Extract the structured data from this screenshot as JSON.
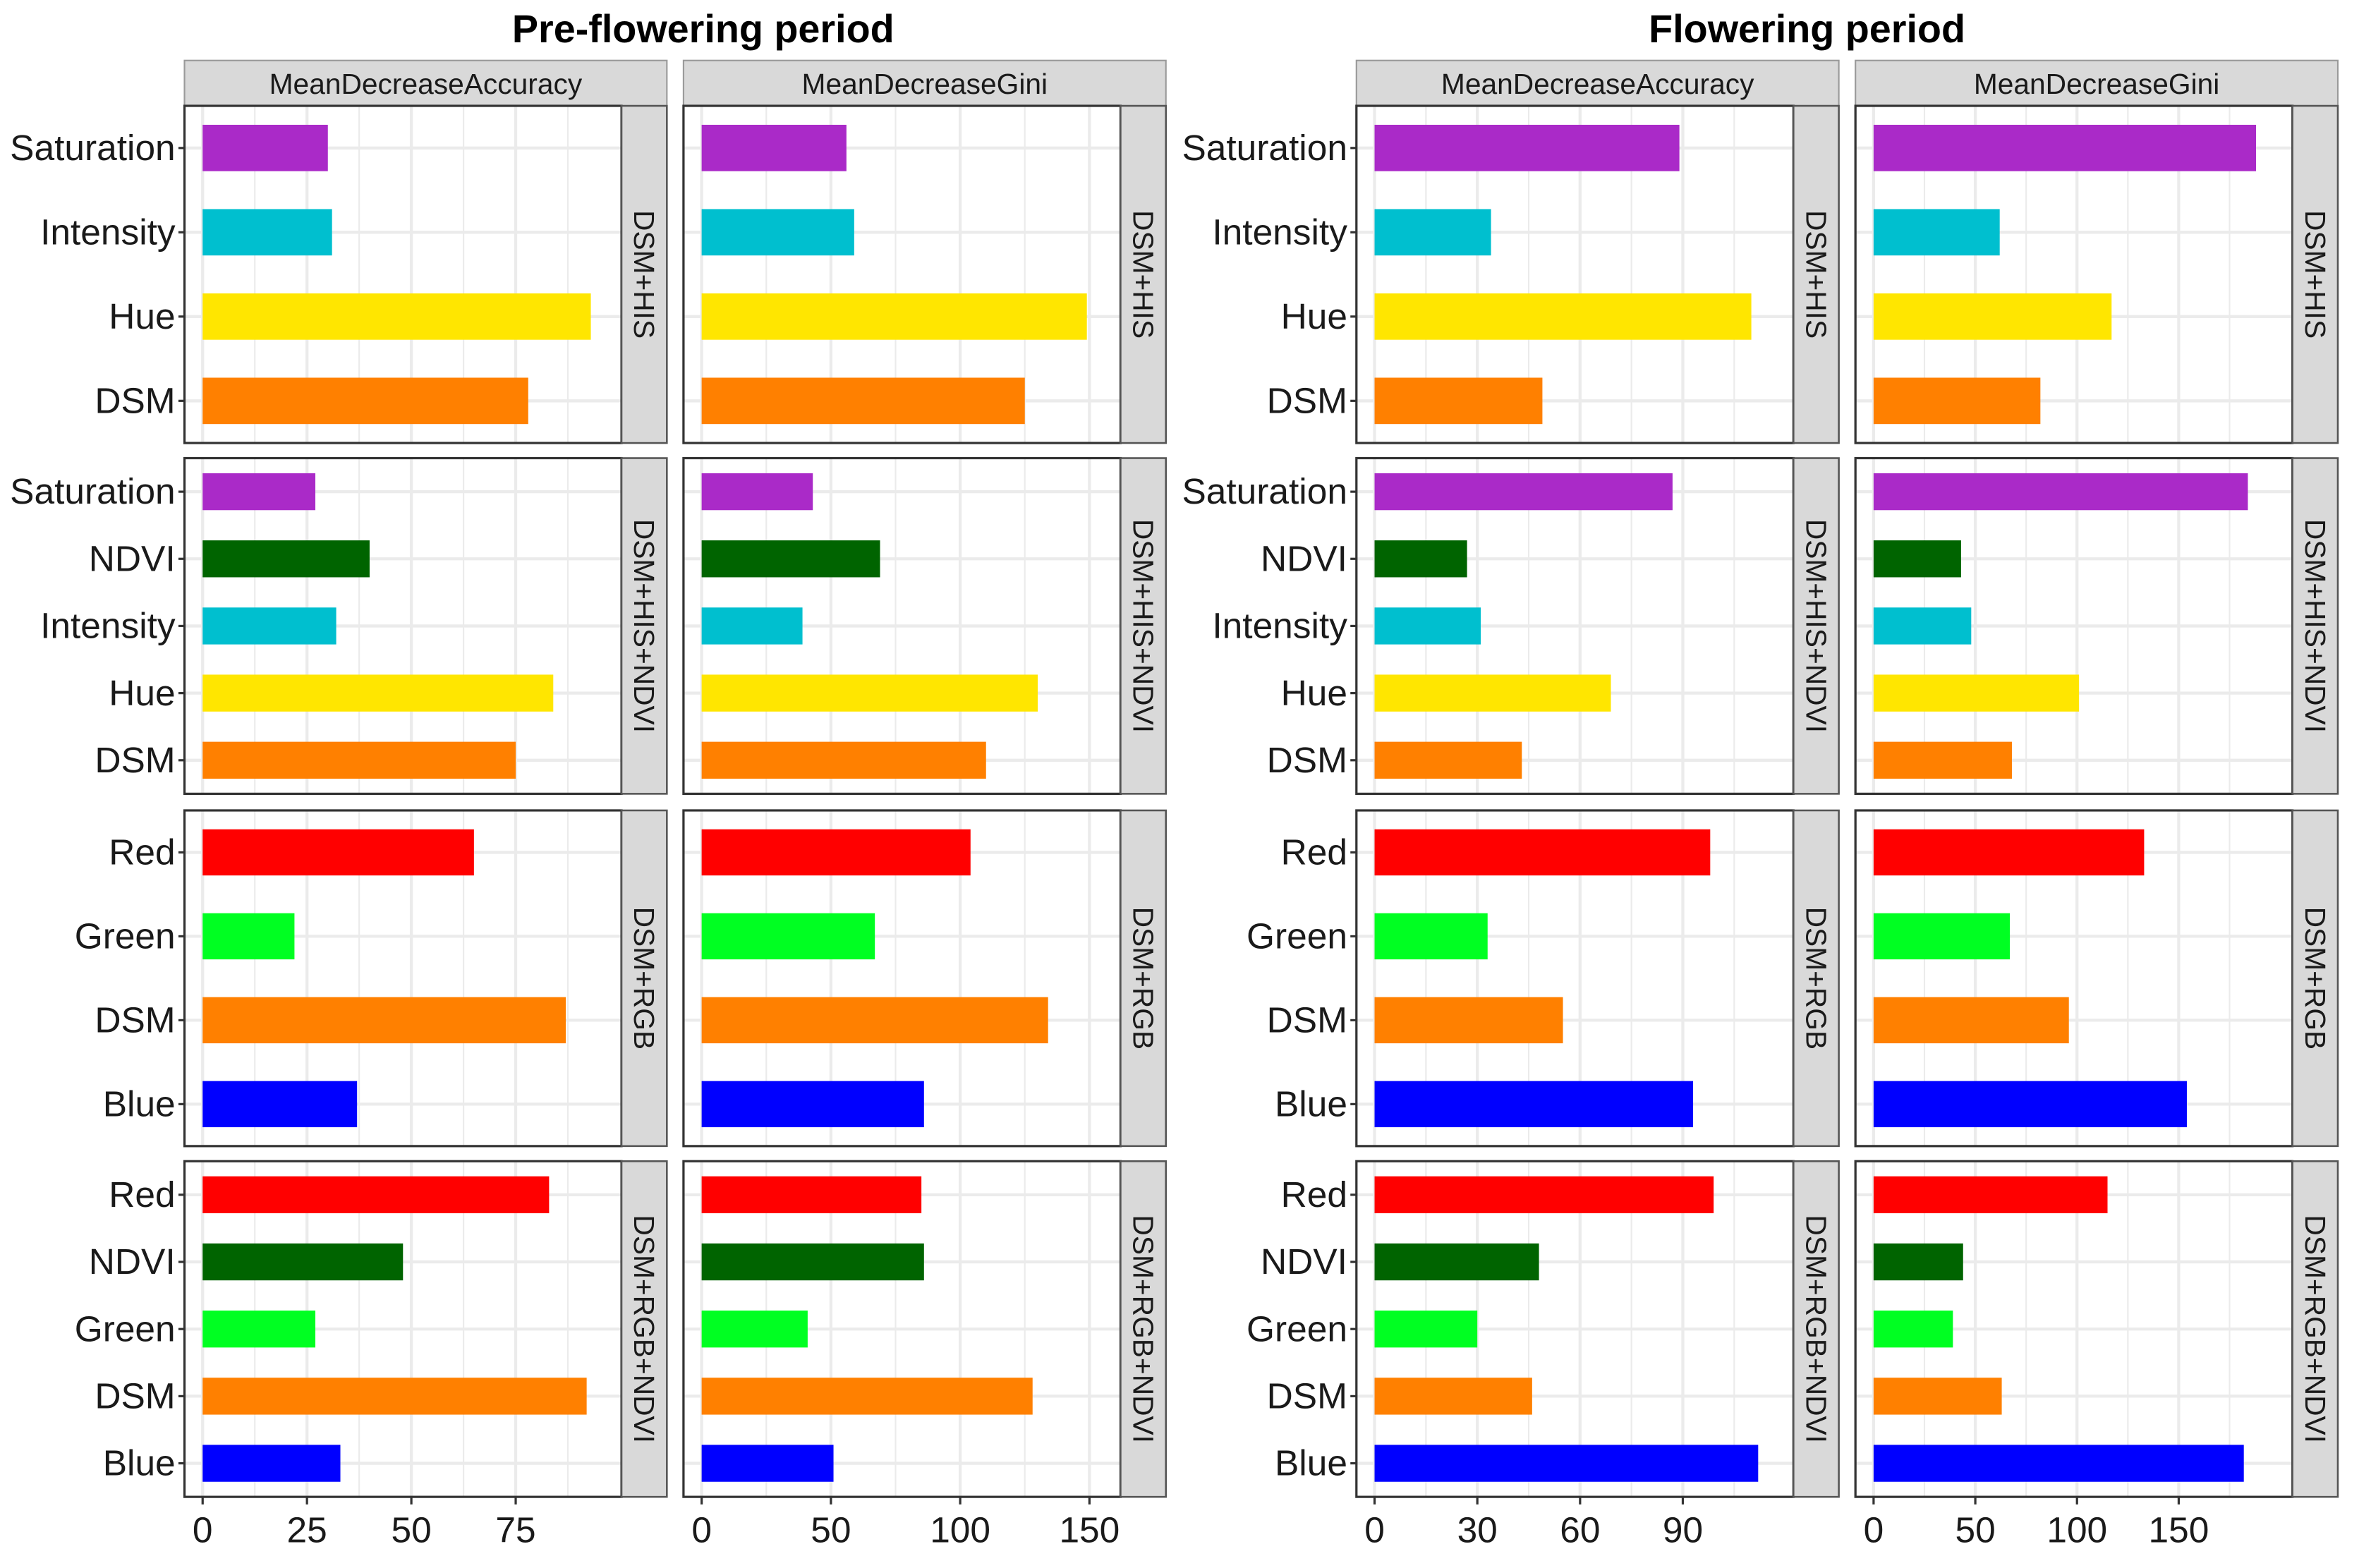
{
  "titles": [
    "Pre-flowering period",
    "Flowering period"
  ],
  "colors": {
    "Saturation": "#aa2ac8",
    "Intensity": "#00bfcf",
    "Hue": "#ffe600",
    "DSM": "#ff8000",
    "NDVI": "#006400",
    "Red": "#ff0000",
    "Green": "#00ff22",
    "Blue": "#0000ff",
    "strip_bg": "#d9d9d9",
    "grid": "#ebebeb"
  },
  "chart_data": [
    {
      "type": "bar",
      "orientation": "horizontal",
      "title": "Pre-flowering period",
      "facet_rows": [
        "DSM+HIS",
        "DSM+HIS+NDVI",
        "DSM+RGB",
        "DSM+RGB+NDVI"
      ],
      "facet_cols": [
        {
          "name": "MeanDecreaseAccuracy",
          "xlim": [
            0,
            96
          ],
          "ticks": [
            0,
            25,
            50,
            75
          ],
          "rows": [
            {
              "categories": [
                "Saturation",
                "Intensity",
                "Hue",
                "DSM"
              ],
              "values": [
                30,
                31,
                93,
                78
              ]
            },
            {
              "categories": [
                "Saturation",
                "NDVI",
                "Intensity",
                "Hue",
                "DSM"
              ],
              "values": [
                27,
                40,
                32,
                84,
                75
              ]
            },
            {
              "categories": [
                "Red",
                "Green",
                "DSM",
                "Blue"
              ],
              "values": [
                65,
                22,
                87,
                37
              ]
            },
            {
              "categories": [
                "Red",
                "NDVI",
                "Green",
                "DSM",
                "Blue"
              ],
              "values": [
                83,
                48,
                27,
                92,
                33
              ]
            }
          ]
        },
        {
          "name": "MeanDecreaseGini",
          "xlim": [
            0,
            155
          ],
          "ticks": [
            0,
            50,
            100,
            150
          ],
          "rows": [
            {
              "categories": [
                "Saturation",
                "Intensity",
                "Hue",
                "DSM"
              ],
              "values": [
                56,
                59,
                149,
                125
              ]
            },
            {
              "categories": [
                "Saturation",
                "NDVI",
                "Intensity",
                "Hue",
                "DSM"
              ],
              "values": [
                43,
                69,
                39,
                130,
                110
              ]
            },
            {
              "categories": [
                "Red",
                "Green",
                "DSM",
                "Blue"
              ],
              "values": [
                104,
                67,
                134,
                86
              ]
            },
            {
              "categories": [
                "Red",
                "NDVI",
                "Green",
                "DSM",
                "Blue"
              ],
              "values": [
                85,
                86,
                41,
                128,
                51
              ]
            }
          ]
        }
      ]
    },
    {
      "type": "bar",
      "orientation": "horizontal",
      "title": "Flowering period",
      "facet_rows": [
        "DSM+HIS",
        "DSM+HIS+NDVI",
        "DSM+RGB",
        "DSM+RGB+NDVI"
      ],
      "facet_cols": [
        {
          "name": "MeanDecreaseAccuracy",
          "xlim": [
            0,
            117
          ],
          "ticks": [
            0,
            30,
            60,
            90
          ],
          "rows": [
            {
              "categories": [
                "Saturation",
                "Intensity",
                "Hue",
                "DSM"
              ],
              "values": [
                89,
                34,
                110,
                49
              ]
            },
            {
              "categories": [
                "Saturation",
                "NDVI",
                "Intensity",
                "Hue",
                "DSM"
              ],
              "values": [
                87,
                27,
                31,
                69,
                43
              ]
            },
            {
              "categories": [
                "Red",
                "Green",
                "DSM",
                "Blue"
              ],
              "values": [
                98,
                33,
                55,
                93
              ]
            },
            {
              "categories": [
                "Red",
                "NDVI",
                "Green",
                "DSM",
                "Blue"
              ],
              "values": [
                99,
                48,
                30,
                46,
                112
              ]
            }
          ]
        },
        {
          "name": "MeanDecreaseGini",
          "xlim": [
            0,
            197
          ],
          "ticks": [
            0,
            50,
            100,
            150
          ],
          "rows": [
            {
              "categories": [
                "Saturation",
                "Intensity",
                "Hue",
                "DSM"
              ],
              "values": [
                188,
                62,
                117,
                82
              ]
            },
            {
              "categories": [
                "Saturation",
                "NDVI",
                "Intensity",
                "Hue",
                "DSM"
              ],
              "values": [
                184,
                43,
                48,
                101,
                68
              ]
            },
            {
              "categories": [
                "Red",
                "Green",
                "DSM",
                "Blue"
              ],
              "values": [
                133,
                67,
                96,
                154
              ]
            },
            {
              "categories": [
                "Red",
                "NDVI",
                "Green",
                "DSM",
                "Blue"
              ],
              "values": [
                115,
                44,
                39,
                63,
                182
              ]
            }
          ]
        }
      ]
    }
  ]
}
